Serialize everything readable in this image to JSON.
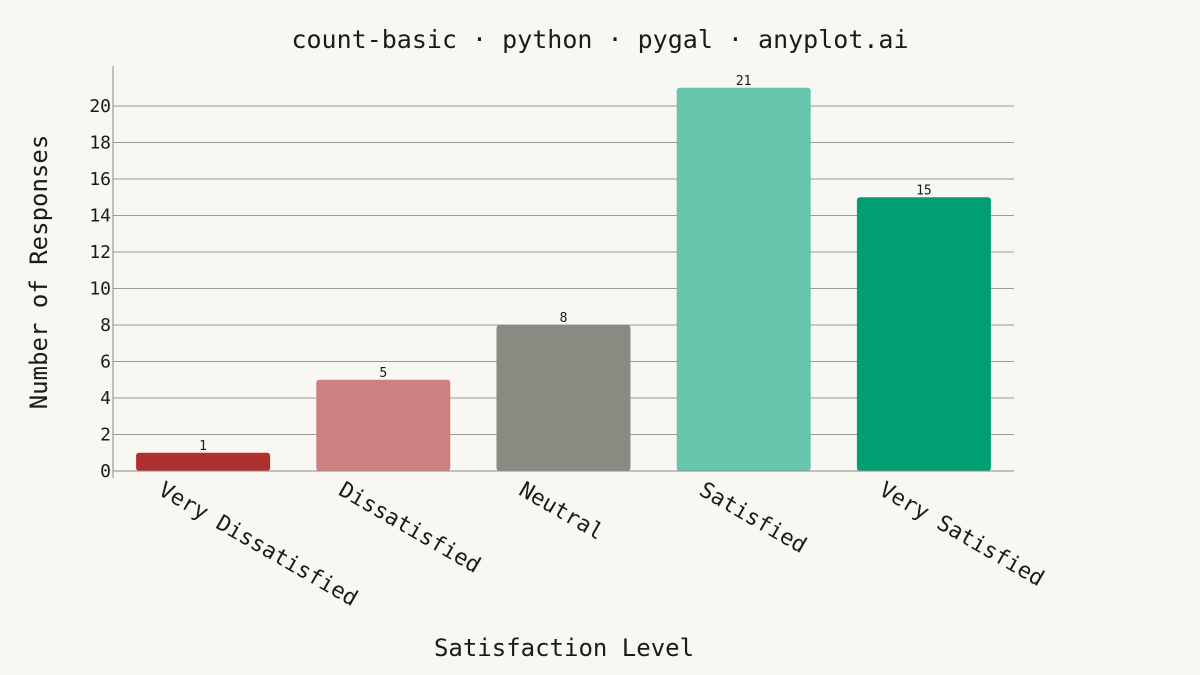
{
  "chart_data": {
    "type": "bar",
    "title": "count-basic · python · pygal · anyplot.ai",
    "xlabel": "Satisfaction Level",
    "ylabel": "Number of Responses",
    "categories": [
      "Very Dissatisfied",
      "Dissatisfied",
      "Neutral",
      "Satisfied",
      "Very Satisfied"
    ],
    "values": [
      1,
      5,
      8,
      21,
      15
    ],
    "colors": [
      "#b03030",
      "#cd8080",
      "#8a8a82",
      "#66c5aa",
      "#009e73"
    ],
    "ylim": [
      0,
      22
    ],
    "yticks": [
      0,
      2,
      4,
      6,
      8,
      10,
      12,
      14,
      16,
      18,
      20
    ],
    "grid": true,
    "legend": "none",
    "background": "#f9f7f2"
  }
}
